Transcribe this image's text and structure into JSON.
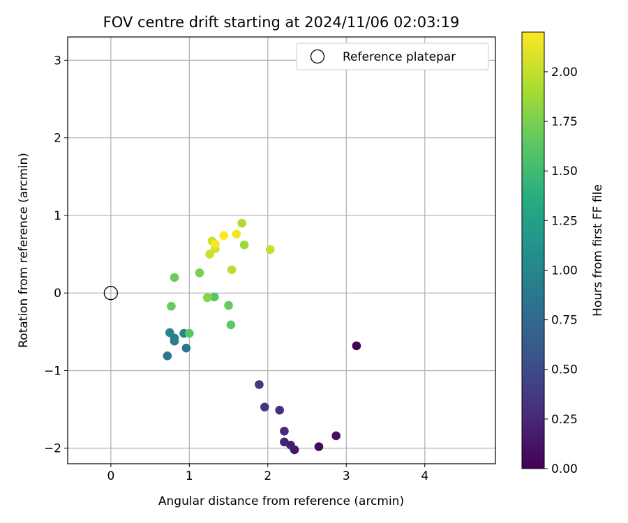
{
  "chart_data": {
    "type": "scatter",
    "title": "FOV centre drift starting at 2024/11/06 02:03:19",
    "xlabel": "Angular distance from reference (arcmin)",
    "ylabel": "Rotation from reference (arcmin)",
    "xlim": [
      -0.55,
      4.9
    ],
    "ylim": [
      -2.2,
      3.3
    ],
    "xticks": [
      0,
      1,
      2,
      3,
      4
    ],
    "yticks": [
      -2,
      -1,
      0,
      1,
      2,
      3
    ],
    "grid": true,
    "legend": {
      "position": "top-right",
      "entries": [
        "Reference platepar"
      ]
    },
    "reference_point": {
      "x": 0,
      "y": 0,
      "label": "Reference platepar"
    },
    "colorbar": {
      "label": "Hours from first FF file",
      "colormap": "viridis",
      "range": [
        0,
        2.2
      ],
      "ticks": [
        "0.00",
        "0.25",
        "0.50",
        "0.75",
        "1.00",
        "1.25",
        "1.50",
        "1.75",
        "2.00"
      ]
    },
    "points": [
      {
        "x": 3.13,
        "y": -0.68,
        "hours": 0.0
      },
      {
        "x": 2.65,
        "y": -1.98,
        "hours": 0.05
      },
      {
        "x": 2.87,
        "y": -1.84,
        "hours": 0.08
      },
      {
        "x": 2.34,
        "y": -2.02,
        "hours": 0.15
      },
      {
        "x": 2.29,
        "y": -1.96,
        "hours": 0.18
      },
      {
        "x": 2.21,
        "y": -1.92,
        "hours": 0.22
      },
      {
        "x": 2.21,
        "y": -1.78,
        "hours": 0.25
      },
      {
        "x": 2.15,
        "y": -1.51,
        "hours": 0.28
      },
      {
        "x": 1.96,
        "y": -1.47,
        "hours": 0.33
      },
      {
        "x": 1.89,
        "y": -1.18,
        "hours": 0.35
      },
      {
        "x": 0.72,
        "y": -0.81,
        "hours": 0.85
      },
      {
        "x": 0.96,
        "y": -0.71,
        "hours": 0.88
      },
      {
        "x": 0.81,
        "y": -0.62,
        "hours": 0.92
      },
      {
        "x": 0.81,
        "y": -0.58,
        "hours": 0.95
      },
      {
        "x": 0.75,
        "y": -0.51,
        "hours": 0.98
      },
      {
        "x": 0.93,
        "y": -0.52,
        "hours": 1.02
      },
      {
        "x": 1.0,
        "y": -0.52,
        "hours": 1.62
      },
      {
        "x": 1.53,
        "y": -0.41,
        "hours": 1.65
      },
      {
        "x": 1.32,
        "y": -0.05,
        "hours": 1.62
      },
      {
        "x": 1.5,
        "y": -0.16,
        "hours": 1.66
      },
      {
        "x": 0.77,
        "y": -0.17,
        "hours": 1.68
      },
      {
        "x": 0.81,
        "y": 0.2,
        "hours": 1.7
      },
      {
        "x": 1.13,
        "y": 0.26,
        "hours": 1.74
      },
      {
        "x": 1.23,
        "y": -0.06,
        "hours": 1.8
      },
      {
        "x": 1.7,
        "y": 0.62,
        "hours": 1.86
      },
      {
        "x": 1.67,
        "y": 0.9,
        "hours": 1.93
      },
      {
        "x": 1.54,
        "y": 0.3,
        "hours": 1.98
      },
      {
        "x": 2.03,
        "y": 0.56,
        "hours": 2.0
      },
      {
        "x": 1.26,
        "y": 0.5,
        "hours": 2.02
      },
      {
        "x": 1.29,
        "y": 0.67,
        "hours": 2.04
      },
      {
        "x": 1.33,
        "y": 0.57,
        "hours": 2.06
      },
      {
        "x": 1.33,
        "y": 0.63,
        "hours": 2.18
      },
      {
        "x": 1.44,
        "y": 0.74,
        "hours": 2.2
      },
      {
        "x": 1.6,
        "y": 0.76,
        "hours": 2.16
      }
    ]
  }
}
